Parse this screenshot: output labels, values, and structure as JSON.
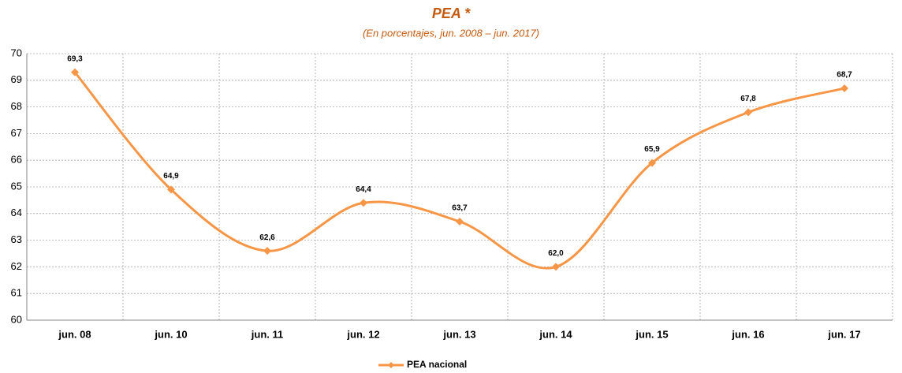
{
  "chart_data": {
    "type": "line",
    "title": "PEA *",
    "subtitle": "(En porcentajes, jun. 2008 – jun. 2017)",
    "categories": [
      "jun. 08",
      "jun. 10",
      "jun. 11",
      "jun. 12",
      "jun. 13",
      "jun. 14",
      "jun. 15",
      "jun. 16",
      "jun. 17"
    ],
    "series": [
      {
        "name": "PEA nacional",
        "color": "#f79646",
        "values": [
          69.3,
          64.9,
          62.6,
          64.4,
          63.7,
          62.0,
          65.9,
          67.8,
          68.7
        ],
        "value_labels": [
          "69,3",
          "64,9",
          "62,6",
          "64,4",
          "63,7",
          "62,0",
          "65,9",
          "67,8",
          "68,7"
        ]
      }
    ],
    "ylim": [
      60,
      70
    ],
    "yticks": [
      60,
      61,
      62,
      63,
      64,
      65,
      66,
      67,
      68,
      69,
      70
    ],
    "grid": true,
    "smooth": true,
    "legend": "bottom"
  }
}
